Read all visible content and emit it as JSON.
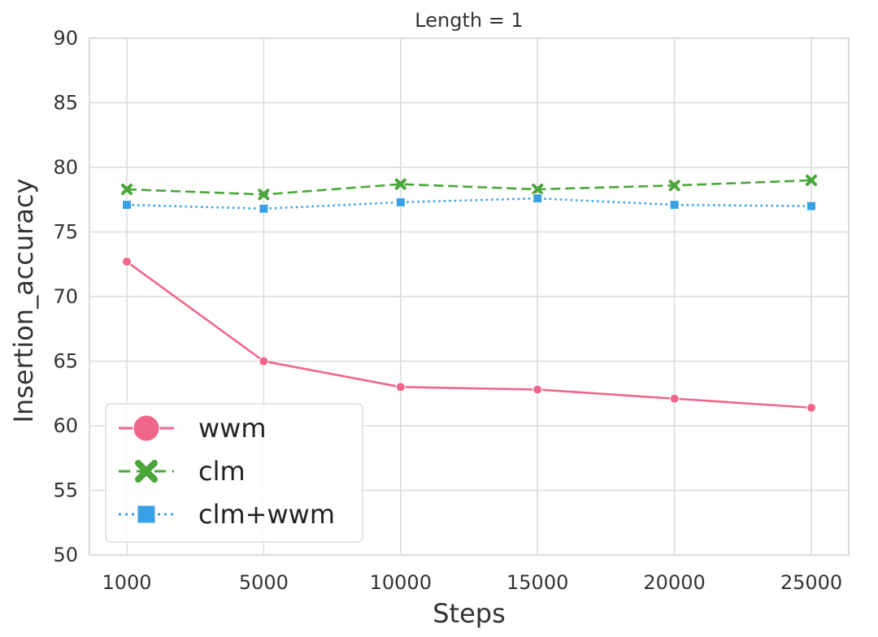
{
  "chart_data": {
    "type": "line",
    "title": "Length = 1",
    "xlabel": "Steps",
    "ylabel": "Insertion_accuracy",
    "categories": [
      "1000",
      "5000",
      "10000",
      "15000",
      "20000",
      "25000"
    ],
    "ylim": [
      50,
      90
    ],
    "yticks": [
      50,
      55,
      60,
      65,
      70,
      75,
      80,
      85,
      90
    ],
    "grid": true,
    "legend_position": "lower-left",
    "series": [
      {
        "name": "wwm",
        "values": [
          72.7,
          65.0,
          63.0,
          62.8,
          62.1,
          61.4
        ],
        "color": "#f0668a",
        "marker": "circle",
        "linestyle": "solid"
      },
      {
        "name": "clm",
        "values": [
          78.3,
          77.9,
          78.7,
          78.3,
          78.6,
          79.0
        ],
        "color": "#4aa63a",
        "marker": "x",
        "linestyle": "dashed"
      },
      {
        "name": "clm+wwm",
        "values": [
          77.1,
          76.8,
          77.3,
          77.6,
          77.1,
          77.0
        ],
        "color": "#3ba1e6",
        "marker": "square",
        "linestyle": "dotted"
      }
    ]
  }
}
